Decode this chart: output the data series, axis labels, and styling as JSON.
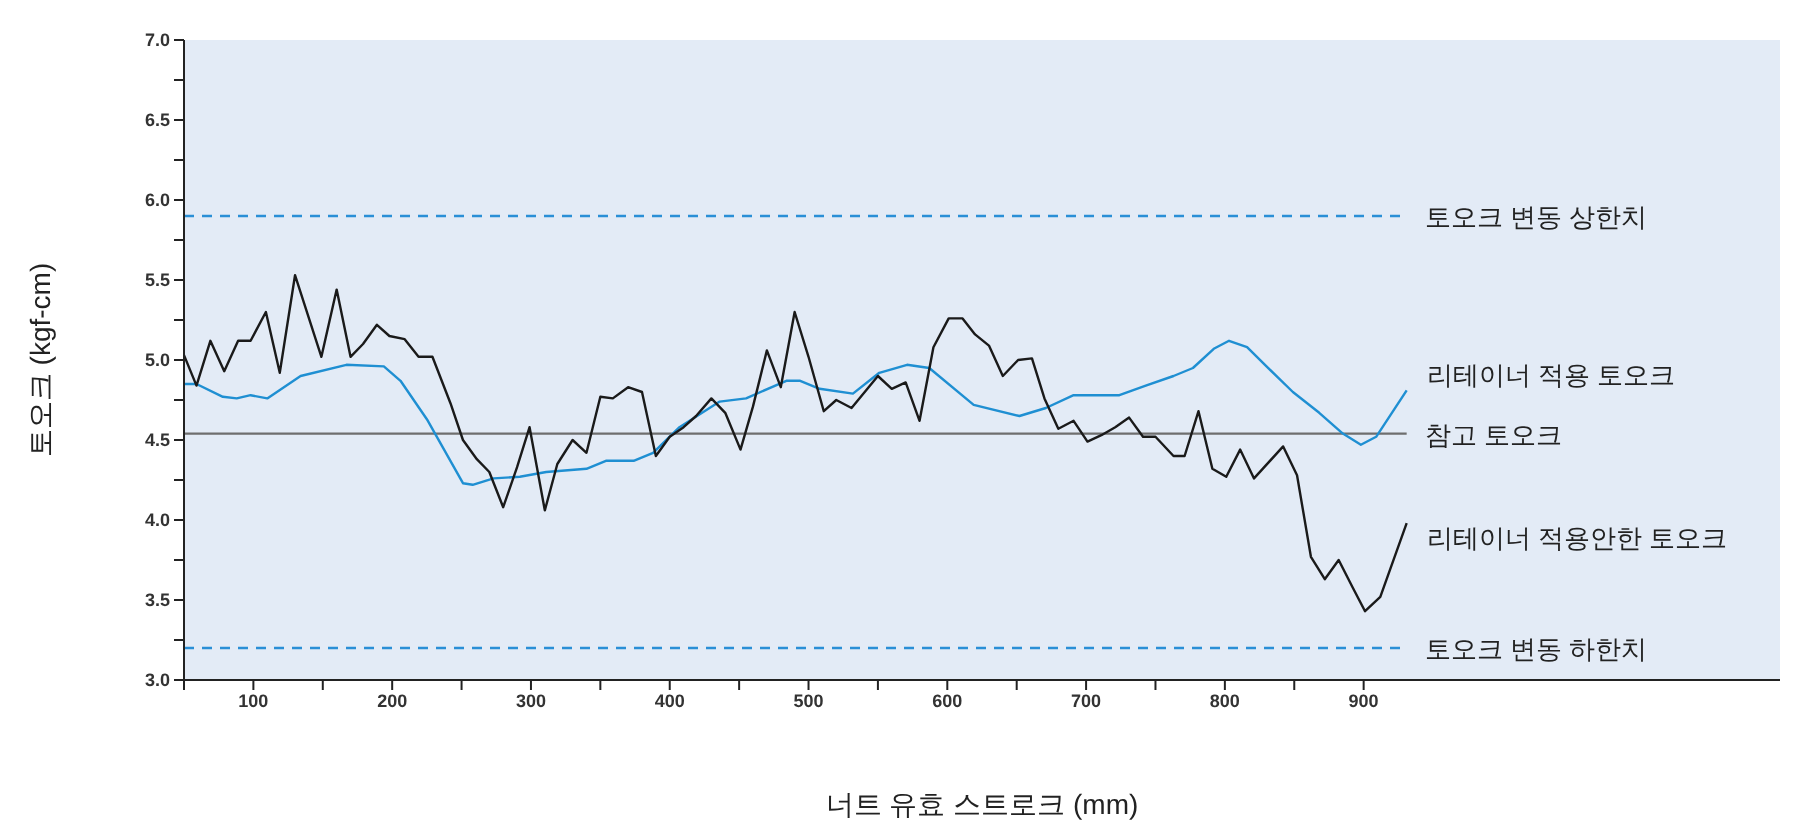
{
  "chart_data": {
    "type": "line",
    "xlabel": "너트 유효 스트로크 (mm)",
    "ylabel": "토오크 (kgf-cm)",
    "xlim": [
      50,
      1200
    ],
    "xticks": [
      {
        "value": 50,
        "label": null
      },
      100,
      {
        "value": 150,
        "label": null
      },
      200,
      {
        "value": 250,
        "label": null
      },
      300,
      {
        "value": 350,
        "label": null
      },
      400,
      {
        "value": 450,
        "label": null
      },
      500,
      {
        "value": 550,
        "label": null
      },
      600,
      {
        "value": 650,
        "label": null
      },
      700,
      {
        "value": 750,
        "label": null
      },
      800,
      {
        "value": 850,
        "label": null
      },
      900
    ],
    "ylim": [
      3,
      7
    ],
    "yticks": [
      {
        "value": 3,
        "label": "3.0"
      },
      {
        "value": 3.25,
        "label": null
      },
      {
        "value": 3.5,
        "label": "3.5"
      },
      {
        "value": 3.75,
        "label": null
      },
      {
        "value": 4,
        "label": "4.0"
      },
      {
        "value": 4.25,
        "label": null
      },
      {
        "value": 4.5,
        "label": "4.5"
      },
      {
        "value": 4.75,
        "label": null
      },
      {
        "value": 5,
        "label": "5.0"
      },
      {
        "value": 5.25,
        "label": null
      },
      {
        "value": 5.5,
        "label": "5.5"
      },
      {
        "value": 5.75,
        "label": null
      },
      {
        "value": 6,
        "label": "6.0"
      },
      {
        "value": 6.25,
        "label": null
      },
      {
        "value": 6.5,
        "label": "6.5"
      },
      {
        "value": 6.75,
        "label": null
      },
      {
        "value": 7,
        "label": "7.0"
      }
    ],
    "legend": false,
    "marker": "none",
    "line_style": "solid",
    "series": [
      {
        "name": "리테이너 적용 토오크",
        "color": "#1f8fd2",
        "x": [
          50,
          59,
          78,
          88,
          98,
          110,
          134,
          167,
          194,
          206,
          225,
          251,
          258,
          273,
          292,
          311,
          340,
          354,
          374,
          388,
          407,
          436,
          455,
          484,
          494,
          508,
          532,
          551,
          571,
          587,
          619,
          652,
          671,
          691,
          724,
          743,
          763,
          777,
          792,
          803,
          816,
          830,
          849,
          868,
          885,
          898,
          909,
          931
        ],
        "values": [
          4.85,
          4.85,
          4.77,
          4.76,
          4.78,
          4.76,
          4.9,
          4.97,
          4.96,
          4.87,
          4.63,
          4.23,
          4.22,
          4.26,
          4.27,
          4.3,
          4.32,
          4.37,
          4.37,
          4.42,
          4.58,
          4.74,
          4.76,
          4.87,
          4.87,
          4.82,
          4.79,
          4.92,
          4.97,
          4.95,
          4.72,
          4.65,
          4.7,
          4.78,
          4.78,
          4.84,
          4.9,
          4.95,
          5.07,
          5.12,
          5.08,
          4.96,
          4.8,
          4.67,
          4.54,
          4.47,
          4.52,
          4.81
        ]
      },
      {
        "name": "리테이너 적용안한 토오크",
        "color": "#1a1a1a",
        "x": [
          50,
          59,
          69,
          79,
          89,
          98,
          109,
          119,
          130,
          149,
          160,
          170,
          179,
          189,
          198,
          209,
          219,
          229,
          242,
          251,
          261,
          270,
          280,
          290,
          299,
          310,
          319,
          330,
          340,
          350,
          359,
          370,
          380,
          390,
          400,
          410,
          419,
          430,
          440,
          451,
          460,
          470,
          480,
          490,
          500,
          511,
          520,
          531,
          550,
          560,
          570,
          580,
          590,
          601,
          611,
          620,
          630,
          640,
          651,
          661,
          670,
          680,
          691,
          701,
          711,
          721,
          731,
          741,
          750,
          763,
          771,
          781,
          791,
          801,
          811,
          821,
          842,
          852,
          862,
          872,
          882,
          892,
          901,
          912,
          931
        ],
        "values": [
          5.03,
          4.84,
          5.12,
          4.93,
          5.12,
          5.12,
          5.3,
          4.92,
          5.53,
          5.02,
          5.44,
          5.02,
          5.1,
          5.22,
          5.15,
          5.13,
          5.02,
          5.02,
          4.73,
          4.5,
          4.38,
          4.3,
          4.08,
          4.33,
          4.58,
          4.06,
          4.35,
          4.5,
          4.42,
          4.77,
          4.76,
          4.83,
          4.8,
          4.4,
          4.52,
          4.58,
          4.65,
          4.76,
          4.67,
          4.44,
          4.71,
          5.06,
          4.83,
          5.3,
          5.02,
          4.68,
          4.75,
          4.7,
          4.9,
          4.82,
          4.86,
          4.62,
          5.08,
          5.26,
          5.26,
          5.16,
          5.09,
          4.9,
          5,
          5.01,
          4.76,
          4.57,
          4.62,
          4.49,
          4.53,
          4.58,
          4.64,
          4.52,
          4.52,
          4.4,
          4.4,
          4.68,
          4.32,
          4.27,
          4.44,
          4.26,
          4.46,
          4.28,
          3.77,
          3.63,
          3.75,
          3.58,
          3.43,
          3.52,
          3.98
        ]
      }
    ],
    "ref_lines": [
      {
        "axis": "y",
        "value": 5.9,
        "label": "토오크 변동 상한치",
        "color": "#2a8fd6",
        "line_style": "dashed"
      },
      {
        "axis": "y",
        "value": 4.54,
        "label": "참고 토오크",
        "color": "#6e6e6e",
        "line_style": "solid"
      },
      {
        "axis": "y",
        "value": 3.2,
        "label": "토오크 변동 하한치",
        "color": "#2a8fd6",
        "line_style": "dashed"
      }
    ]
  }
}
